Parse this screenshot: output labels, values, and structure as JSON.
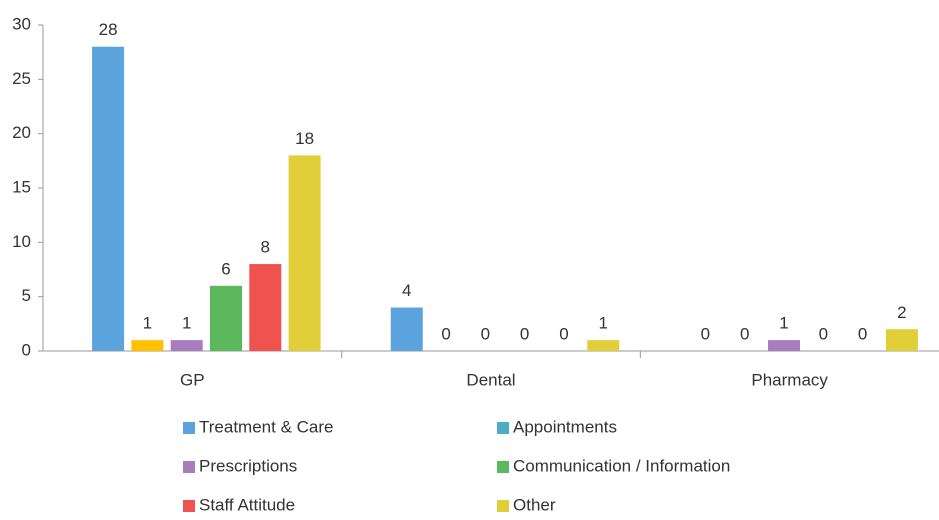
{
  "chart_data": {
    "type": "bar",
    "categories": [
      "GP",
      "Dental",
      "Pharmacy"
    ],
    "series": [
      {
        "name": "Treatment & Care",
        "color": "#5ba3dc",
        "values": [
          28,
          4,
          0
        ]
      },
      {
        "name": "Appointments",
        "color": "#4bacc6",
        "colors": [
          "#ffc000",
          "#4bacc6",
          "#4bacc6"
        ],
        "values": [
          1,
          0,
          0
        ]
      },
      {
        "name": "Prescriptions",
        "color": "#a97cc0",
        "values": [
          1,
          0,
          1
        ]
      },
      {
        "name": "Communication / Information",
        "color": "#5cb85c",
        "values": [
          6,
          0,
          0
        ]
      },
      {
        "name": "Staff Attitude",
        "color": "#f0524f",
        "values": [
          8,
          0,
          0
        ]
      },
      {
        "name": "Other",
        "color": "#e1cf3a",
        "values": [
          18,
          1,
          2
        ]
      }
    ],
    "ylim": [
      0,
      30
    ],
    "yticks": [
      0,
      5,
      10,
      15,
      20,
      25,
      30
    ],
    "grid": false,
    "legend": "bottom"
  }
}
